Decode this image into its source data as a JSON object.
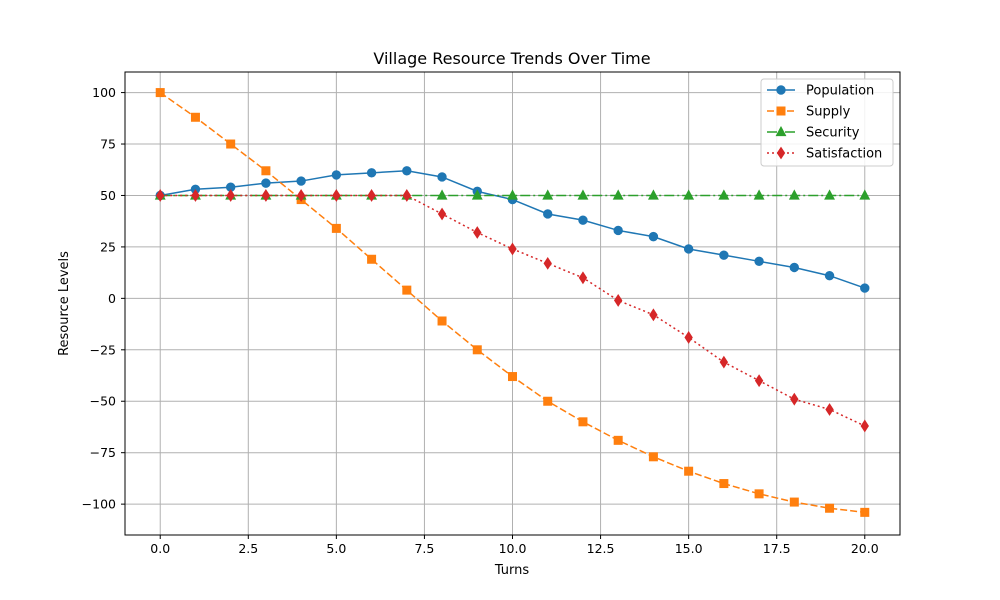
{
  "chart_data": {
    "type": "line",
    "title": "Village Resource Trends Over Time",
    "xlabel": "Turns",
    "ylabel": "Resource Levels",
    "xlim": [
      -1,
      21
    ],
    "ylim": [
      -115,
      110
    ],
    "x_ticks": [
      0,
      2.5,
      5,
      7.5,
      10,
      12.5,
      15,
      17.5,
      20
    ],
    "x_tick_labels": [
      "0.0",
      "2.5",
      "5.0",
      "7.5",
      "10.0",
      "12.5",
      "15.0",
      "17.5",
      "20.0"
    ],
    "y_ticks": [
      100,
      75,
      50,
      25,
      0,
      -25,
      -50,
      -75,
      -100
    ],
    "y_tick_labels": [
      "100",
      "75",
      "50",
      "25",
      "0",
      "−25",
      "−50",
      "−75",
      "−100"
    ],
    "grid": true,
    "legend_position": "top-right",
    "x": [
      0,
      1,
      2,
      3,
      4,
      5,
      6,
      7,
      8,
      9,
      10,
      11,
      12,
      13,
      14,
      15,
      16,
      17,
      18,
      19,
      20
    ],
    "series": [
      {
        "name": "Population",
        "color": "#1f77b4",
        "marker": "circle",
        "line_style": "solid",
        "values": [
          50,
          53,
          54,
          56,
          57,
          60,
          61,
          62,
          59,
          52,
          48,
          41,
          38,
          33,
          30,
          24,
          21,
          18,
          15,
          11,
          5
        ]
      },
      {
        "name": "Supply",
        "color": "#ff7f0e",
        "marker": "square",
        "line_style": "dashed",
        "values": [
          100,
          88,
          75,
          62,
          48,
          34,
          19,
          4,
          -11,
          -25,
          -38,
          -50,
          -60,
          -69,
          -77,
          -84,
          -90,
          -95,
          -99,
          -102,
          -104
        ]
      },
      {
        "name": "Security",
        "color": "#2ca02c",
        "marker": "triangle",
        "line_style": "dashdot",
        "values": [
          50,
          50,
          50,
          50,
          50,
          50,
          50,
          50,
          50,
          50,
          50,
          50,
          50,
          50,
          50,
          50,
          50,
          50,
          50,
          50,
          50
        ]
      },
      {
        "name": "Satisfaction",
        "color": "#d62728",
        "marker": "diamond",
        "line_style": "dotted",
        "values": [
          50,
          50,
          50,
          50,
          50,
          50,
          50,
          50,
          41,
          32,
          24,
          17,
          10,
          -1,
          -8,
          -19,
          -31,
          -40,
          -49,
          -54,
          -62
        ]
      }
    ]
  }
}
